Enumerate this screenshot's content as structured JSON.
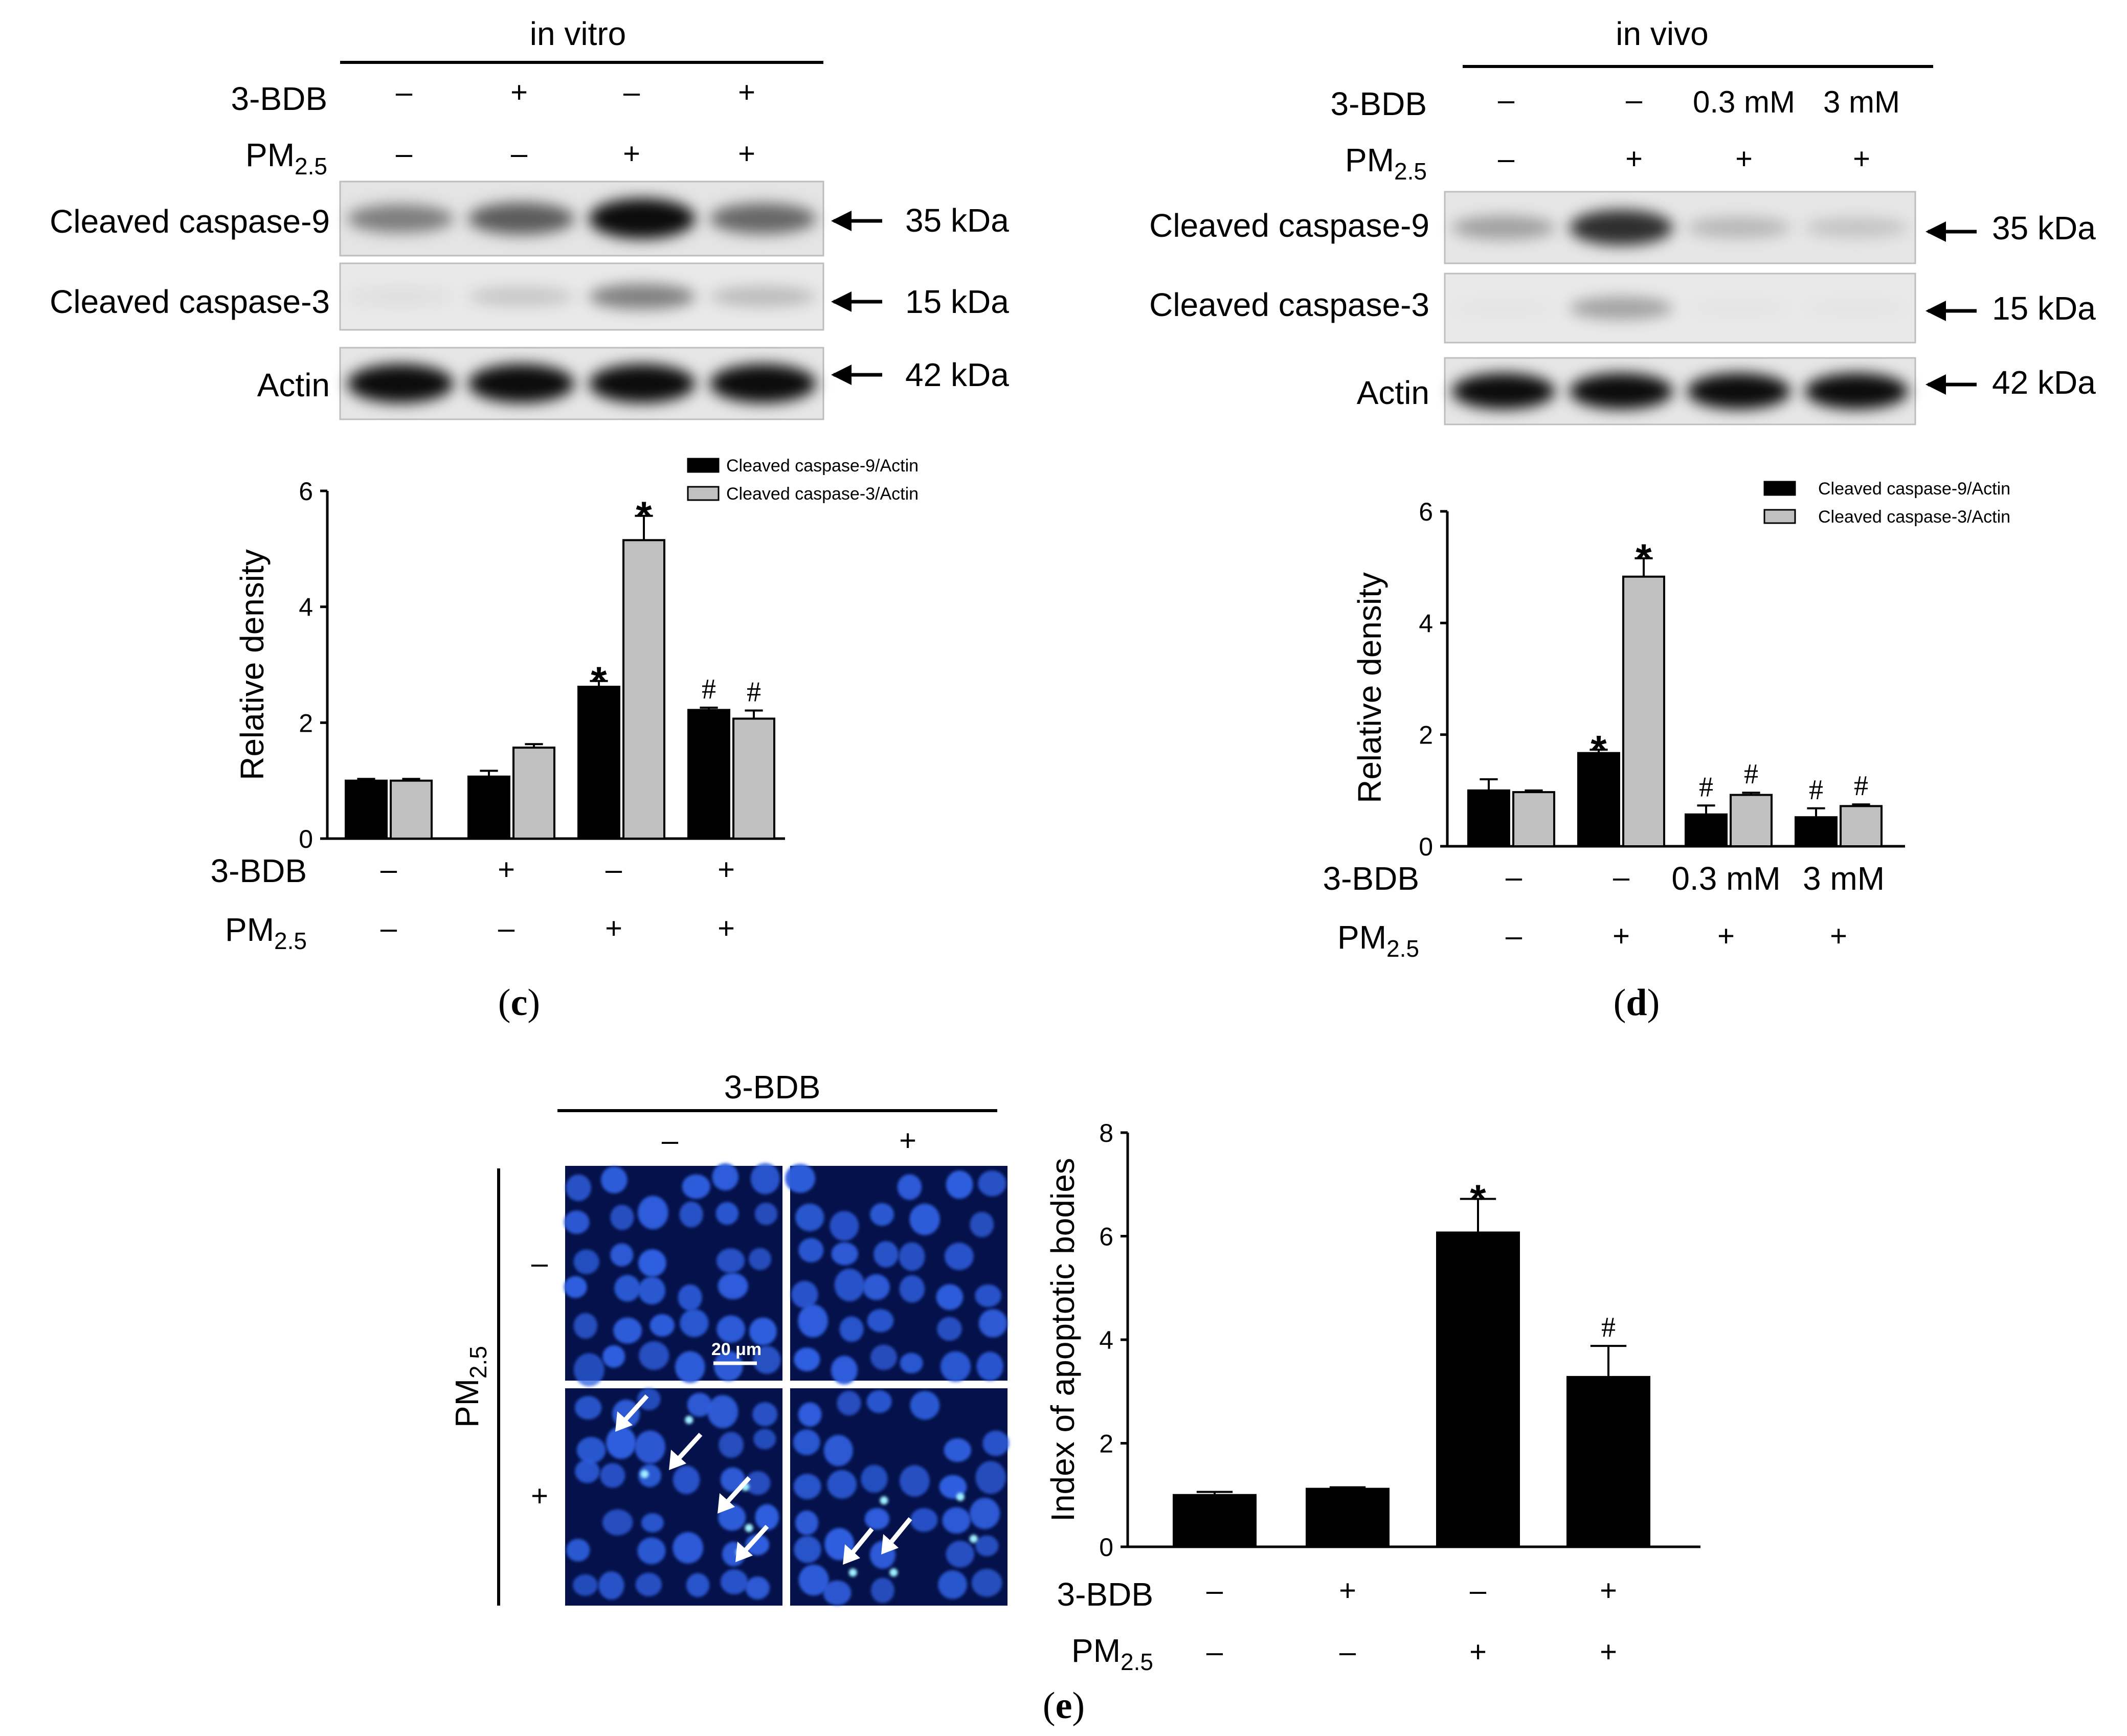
{
  "panels": [
    {
      "id": "c",
      "label": "c",
      "blot": {
        "title": "in vitro",
        "treatment_rows": [
          {
            "name": "3-BDB",
            "values": [
              "–",
              "+",
              "–",
              "+"
            ]
          },
          {
            "name": "PM",
            "sub": "2.5",
            "values": [
              "–",
              "–",
              "+",
              "+"
            ]
          }
        ],
        "bands": [
          {
            "name": "Cleaved caspase-9",
            "size": "35 kDa",
            "intensity": [
              0.45,
              0.6,
              0.95,
              0.55
            ]
          },
          {
            "name": "Cleaved caspase-3",
            "size": "15 kDa",
            "intensity": [
              0.05,
              0.15,
              0.45,
              0.2
            ]
          },
          {
            "name": "Actin",
            "size": "42 kDa",
            "intensity": [
              0.95,
              0.95,
              0.95,
              0.95
            ]
          }
        ]
      },
      "chart_data": {
        "type": "bar",
        "ylabel": "Relative density",
        "ylim": [
          0,
          6
        ],
        "yticks": [
          0,
          2,
          4,
          6
        ],
        "legend_position": "top-right",
        "categories": [
          "–/–",
          "+/–",
          "–/+",
          "+/+"
        ],
        "series": [
          {
            "name": "Cleaved caspase-9/Actin",
            "color": "#000000",
            "values": [
              1.0,
              1.07,
              2.62,
              2.22
            ],
            "errors": [
              0.03,
              0.1,
              0.1,
              0.04
            ]
          },
          {
            "name": "Cleaved caspase-3/Actin",
            "color": "#c0c0c0",
            "values": [
              1.0,
              1.57,
              5.15,
              2.07
            ],
            "errors": [
              0.03,
              0.06,
              0.42,
              0.14
            ]
          }
        ],
        "annotations": [
          [
            null,
            null,
            "*",
            "#"
          ],
          [
            null,
            null,
            "*",
            "#"
          ]
        ],
        "treatment_rows": [
          {
            "name": "3-BDB",
            "values": [
              "–",
              "+",
              "–",
              "+"
            ]
          },
          {
            "name": "PM",
            "sub": "2.5",
            "values": [
              "–",
              "–",
              "+",
              "+"
            ]
          }
        ]
      }
    },
    {
      "id": "d",
      "label": "d",
      "blot": {
        "title": "in vivo",
        "treatment_rows": [
          {
            "name": "3-BDB",
            "values": [
              "–",
              "–",
              "0.3 mM",
              "3 mM"
            ]
          },
          {
            "name": "PM",
            "sub": "2.5",
            "values": [
              "–",
              "+",
              "+",
              "+"
            ]
          }
        ],
        "bands": [
          {
            "name": "Cleaved caspase-9",
            "size": "35 kDa",
            "intensity": [
              0.3,
              0.8,
              0.2,
              0.15
            ]
          },
          {
            "name": "Cleaved caspase-3",
            "size": "15 kDa",
            "intensity": [
              0.02,
              0.3,
              0.02,
              0.02
            ]
          },
          {
            "name": "Actin",
            "size": "42 kDa",
            "intensity": [
              0.95,
              0.95,
              0.95,
              0.95
            ]
          }
        ]
      },
      "chart_data": {
        "type": "bar",
        "ylabel": "Relative density",
        "ylim": [
          0,
          6
        ],
        "yticks": [
          0,
          2,
          4,
          6
        ],
        "legend_position": "top-right",
        "categories": [
          "–/–",
          "–/+",
          "0.3 mM/+",
          "3 mM/+"
        ],
        "series": [
          {
            "name": "Cleaved caspase-9/Actin",
            "color": "#000000",
            "values": [
              1.0,
              1.67,
              0.57,
              0.52
            ],
            "errors": [
              0.2,
              0.06,
              0.16,
              0.16
            ]
          },
          {
            "name": "Cleaved caspase-3/Actin",
            "color": "#c0c0c0",
            "values": [
              0.97,
              4.83,
              0.92,
              0.72
            ],
            "errors": [
              0.03,
              0.33,
              0.04,
              0.03
            ]
          }
        ],
        "annotations": [
          [
            null,
            "*",
            "#",
            "#"
          ],
          [
            null,
            "*",
            "#",
            "#"
          ]
        ],
        "treatment_rows": [
          {
            "name": "3-BDB",
            "values": [
              "–",
              "–",
              "0.3 mM",
              "3 mM"
            ]
          },
          {
            "name": "PM",
            "sub": "2.5",
            "values": [
              "–",
              "+",
              "+",
              "+"
            ]
          }
        ]
      }
    },
    {
      "id": "e",
      "label": "e",
      "micrograph": {
        "column_title": "3-BDB",
        "column_values": [
          "–",
          "+"
        ],
        "row_title": "PM",
        "row_sub": "2.5",
        "row_values": [
          "–",
          "+"
        ],
        "scale_bar": "20 μm",
        "background": "#04114a",
        "nucleus_color": "#2f5fe0"
      },
      "chart_data": {
        "type": "bar",
        "ylabel": "Index of apoptotic bodies",
        "ylim": [
          0,
          8
        ],
        "yticks": [
          0,
          2,
          4,
          6,
          8
        ],
        "categories": [
          "–/–",
          "+/–",
          "–/+",
          "+/+"
        ],
        "series": [
          {
            "color": "#000000",
            "values": [
              1.0,
              1.12,
              6.07,
              3.28
            ],
            "errors": [
              0.06,
              0.03,
              0.65,
              0.6
            ]
          }
        ],
        "annotations": [
          [
            null,
            null,
            "*",
            "#"
          ]
        ],
        "treatment_rows": [
          {
            "name": "3-BDB",
            "values": [
              "–",
              "+",
              "–",
              "+"
            ]
          },
          {
            "name": "PM",
            "sub": "2.5",
            "values": [
              "–",
              "–",
              "+",
              "+"
            ]
          }
        ]
      }
    }
  ]
}
